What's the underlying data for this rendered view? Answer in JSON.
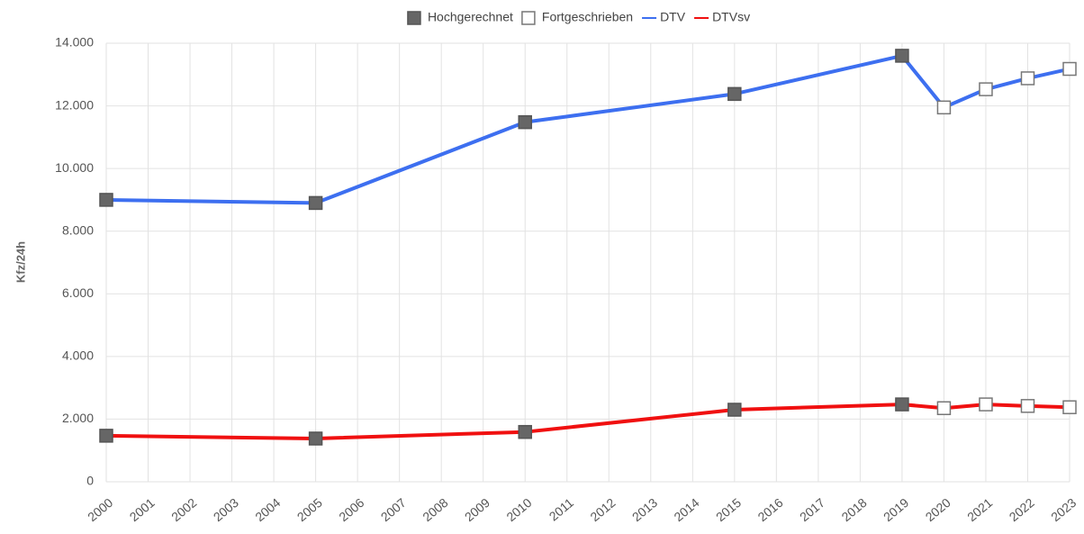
{
  "chart_data": {
    "type": "line",
    "y_label": "Kfz/24h",
    "x": [
      2000,
      2005,
      2010,
      2015,
      2019,
      2020,
      2021,
      2022,
      2023
    ],
    "series": [
      {
        "name": "DTV",
        "color": "#3d6ff0",
        "values": [
          9000,
          8900,
          11480,
          12380,
          13600,
          11950,
          12530,
          12880,
          13180
        ]
      },
      {
        "name": "DTVsv",
        "color": "#f01010",
        "values": [
          1470,
          1380,
          1590,
          2300,
          2470,
          2350,
          2470,
          2420,
          2380
        ]
      }
    ],
    "marker_styles": [
      {
        "name": "Hochgerechnet",
        "fill": "#666666",
        "stroke": "#555555"
      },
      {
        "name": "Fortgeschrieben",
        "fill": "#ffffff",
        "stroke": "#777777"
      }
    ],
    "marker_style": [
      0,
      0,
      0,
      0,
      0,
      1,
      1,
      1,
      1
    ],
    "xlim": [
      2000,
      2023
    ],
    "xticks": [
      2000,
      2001,
      2002,
      2003,
      2004,
      2005,
      2006,
      2007,
      2008,
      2009,
      2010,
      2011,
      2012,
      2013,
      2014,
      2015,
      2016,
      2017,
      2018,
      2019,
      2020,
      2021,
      2022,
      2023
    ],
    "ylim": [
      0,
      14000
    ],
    "yticks": [
      0,
      {
        "value": 2000,
        "label": "2.000"
      },
      {
        "value": 4000,
        "label": "4.000"
      },
      {
        "value": 6000,
        "label": "6.000"
      },
      {
        "value": 8000,
        "label": "8.000"
      },
      {
        "value": 10000,
        "label": "10.000"
      },
      {
        "value": 12000,
        "label": "12.000"
      },
      {
        "value": 14000,
        "label": "14.000"
      }
    ],
    "grid": true,
    "legend": "top"
  }
}
